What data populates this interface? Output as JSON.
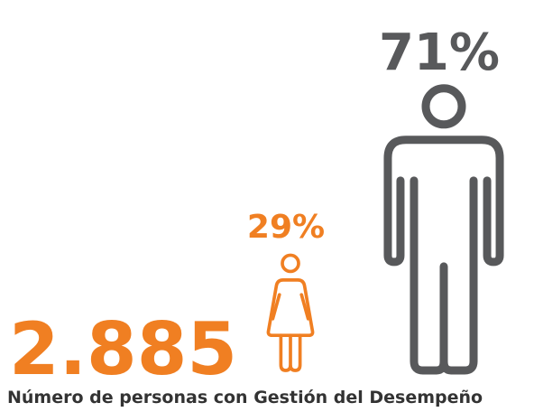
{
  "chart_data": {
    "type": "pictogram",
    "title": "Número de personas con Gestión del Desempeño",
    "total": {
      "value": 2885,
      "label": "2.885"
    },
    "categories": [
      null,
      null
    ],
    "values": [
      29,
      71
    ],
    "value_labels": [
      "29%",
      "71%"
    ],
    "colors": [
      "#f07f22",
      "#58595b"
    ]
  }
}
